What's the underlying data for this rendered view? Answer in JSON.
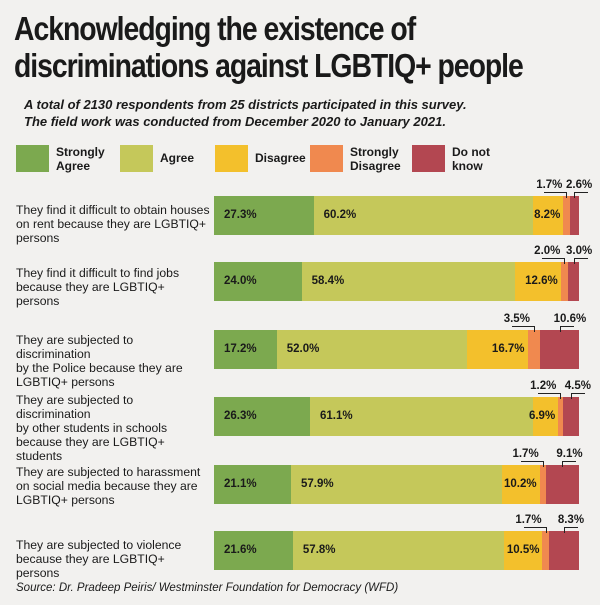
{
  "title_lines": [
    "Acknowledging the existence of",
    "discriminations against LGBTIQ+ people"
  ],
  "subtitle_lines": [
    "A total of 2130 respondents from 25 districts participated in this survey.",
    "The field work was conducted from December 2020 to January 2021."
  ],
  "source": "Source: Dr. Pradeep Peiris/ Westminster Foundation for Democracy (WFD)",
  "colors": {
    "strongly_agree": "#7ca94f",
    "agree": "#c5c85a",
    "disagree": "#f3c02c",
    "strongly_disagree": "#f0894f",
    "do_not_know": "#b34751",
    "background": "#f2f1ef"
  },
  "legend": [
    {
      "label_lines": [
        "Strongly",
        "Agree"
      ],
      "color_key": "strongly_agree"
    },
    {
      "label_lines": [
        "Agree"
      ],
      "color_key": "agree"
    },
    {
      "label_lines": [
        "Disagree"
      ],
      "color_key": "disagree"
    },
    {
      "label_lines": [
        "Strongly",
        "Disagree"
      ],
      "color_key": "strongly_disagree"
    },
    {
      "label_lines": [
        "Do not",
        "know"
      ],
      "color_key": "do_not_know"
    }
  ],
  "chart_data": {
    "type": "bar",
    "orientation": "horizontal-stacked-100",
    "categories": [
      "They find it difficult to obtain houses on rent because they are LGBTIQ+ persons",
      "They find it difficult to find jobs because they are LGBTIQ+ persons",
      "They are subjected to discrimination by the Police because they are LGBTIQ+ persons",
      "They are subjected to discrimination by other students in schools because they are LGBTIQ+ students",
      "They are subjected to harassment on social media because they are LGBTIQ+ persons",
      "They are subjected to violence because they are LGBTIQ+ persons"
    ],
    "category_lines": [
      [
        "They find it difficult to obtain houses",
        "on rent because they are LGBTIQ+",
        "persons"
      ],
      [
        "They find it difficult to find jobs",
        "because they are LGBTIQ+ persons"
      ],
      [
        "They are subjected to discrimination",
        "by the Police because they are",
        "LGBTIQ+ persons"
      ],
      [
        "They are subjected to discrimination",
        "by other students in schools",
        "because they are LGBTIQ+ students"
      ],
      [
        "They are subjected to harassment",
        "on social media because they are",
        "LGBTIQ+ persons"
      ],
      [
        "They are subjected to violence",
        "because they are LGBTIQ+ persons"
      ]
    ],
    "series": [
      {
        "name": "Strongly Agree",
        "values": [
          27.3,
          24.0,
          17.2,
          26.3,
          21.1,
          21.6
        ]
      },
      {
        "name": "Agree",
        "values": [
          60.2,
          58.4,
          52.0,
          61.1,
          57.9,
          57.8
        ]
      },
      {
        "name": "Disagree",
        "values": [
          8.2,
          12.6,
          16.7,
          6.9,
          10.2,
          10.5
        ]
      },
      {
        "name": "Strongly Disagree",
        "values": [
          1.7,
          2.0,
          3.5,
          1.2,
          1.7,
          1.7
        ]
      },
      {
        "name": "Do not know",
        "values": [
          2.6,
          3.0,
          10.6,
          4.5,
          9.1,
          8.3
        ]
      }
    ],
    "value_labels": [
      [
        "27.3%",
        "60.2%",
        "8.2%",
        "1.7%",
        "2.6%"
      ],
      [
        "24.0%",
        "58.4%",
        "12.6%",
        "2.0%",
        "3.0%"
      ],
      [
        "17.2%",
        "52.0%",
        "16.7%",
        "3.5%",
        "10.6%"
      ],
      [
        "26.3%",
        "61.1%",
        "6.9%",
        "1.2%",
        "4.5%"
      ],
      [
        "21.1%",
        "57.9%",
        "10.2%",
        "1.7%",
        "9.1%"
      ],
      [
        "21.6%",
        "57.8%",
        "10.5%",
        "1.7%",
        "8.3%"
      ]
    ],
    "xlim": [
      0,
      100
    ],
    "grid": false,
    "legend_position": "top"
  }
}
